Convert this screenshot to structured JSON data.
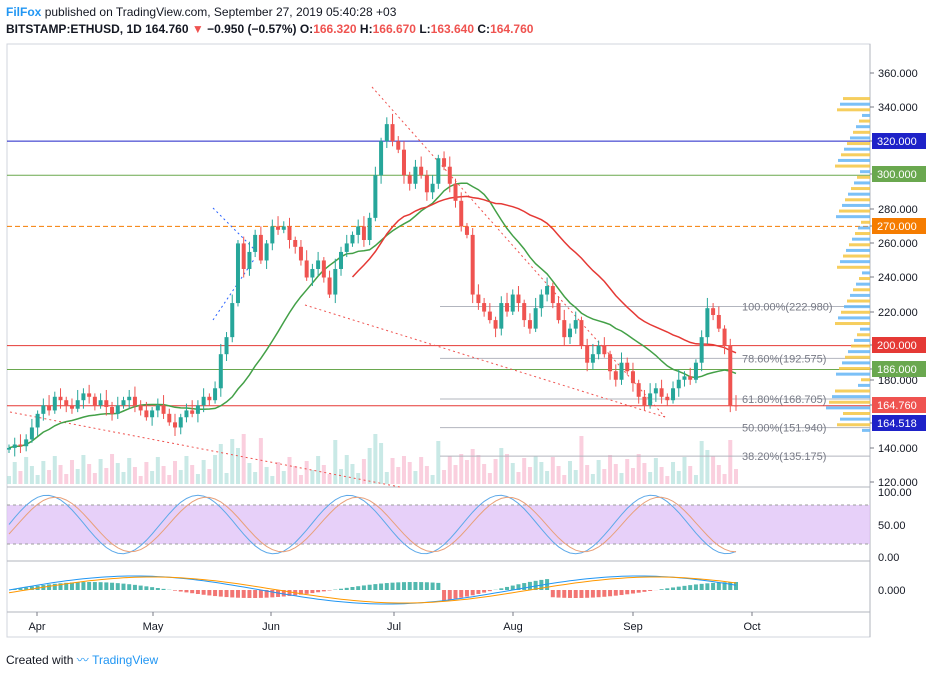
{
  "header": {
    "author": "FilFox",
    "published_text": "published on TradingView.com, September 27, 2019 05:40:28 +03",
    "symbol": "BITSTAMP:ETHUSD, 1D",
    "last": "164.760",
    "change": "−0.950 (−0.57%)",
    "o_label": "O:",
    "o": "166.320",
    "h_label": "H:",
    "h": "166.670",
    "l_label": "L:",
    "l": "163.640",
    "c_label": "C:",
    "c": "164.760"
  },
  "footer": {
    "created_with": "Created with",
    "brand": "TradingView"
  },
  "colors": {
    "up": "#26a69a",
    "down": "#ef5350",
    "ma": "#e53935",
    "ma_green": "#43a047",
    "blue_line": "#1e22c8",
    "green_line": "#6aa84f",
    "orange_line": "#f57c00",
    "stoch_fill": "#e1c4f7",
    "stoch_k": "#5da9e9",
    "stoch_d": "#e8a07a",
    "fib_line": "#b2b5be"
  },
  "chart_data": {
    "type": "candlestick",
    "price_axis": {
      "ticks": [
        "360.000",
        "340.000",
        "320.000",
        "300.000",
        "280.000",
        "270.000",
        "260.000",
        "240.000",
        "220.000",
        "200.000",
        "186.000",
        "180.000",
        "164.760",
        "164.518",
        "140.000",
        "120.000"
      ],
      "range": [
        120,
        370
      ]
    },
    "time_axis": {
      "labels": [
        "Apr",
        "May",
        "Jun",
        "Jul",
        "Aug",
        "Sep",
        "Oct"
      ]
    },
    "horizontal_levels": [
      {
        "value": 320,
        "label": "320.000",
        "color": "#1e22c8"
      },
      {
        "value": 300,
        "label": "300.000",
        "color": "#6aa84f"
      },
      {
        "value": 270,
        "label": "270.000",
        "color": "#f57c00",
        "style": "dashed"
      },
      {
        "value": 200,
        "label": "200.000",
        "color": "#e53935"
      },
      {
        "value": 186,
        "label": "186.000",
        "color": "#6aa84f"
      },
      {
        "value": 164.76,
        "label": "164.760",
        "color": "#e53935"
      },
      {
        "value": 164.518,
        "label": "164.518",
        "color": "#1e22c8"
      }
    ],
    "fib_levels": [
      {
        "value": 222.98,
        "label": "100.00%(222.980)"
      },
      {
        "value": 192.575,
        "label": "78.60%(192.575)"
      },
      {
        "value": 168.705,
        "label": "61.80%(168.705)"
      },
      {
        "value": 151.94,
        "label": "50.00%(151.940)"
      },
      {
        "value": 135.175,
        "label": "38.20%(135.175)"
      }
    ],
    "close_series": [
      140,
      142,
      141,
      145,
      152,
      160,
      165,
      162,
      170,
      168,
      165,
      163,
      168,
      172,
      170,
      165,
      168,
      164,
      160,
      165,
      168,
      170,
      165,
      162,
      158,
      162,
      165,
      160,
      155,
      152,
      158,
      162,
      160,
      165,
      170,
      168,
      175,
      195,
      205,
      225,
      260,
      245,
      255,
      265,
      250,
      260,
      270,
      268,
      270,
      262,
      258,
      250,
      240,
      245,
      250,
      240,
      230,
      245,
      255,
      260,
      265,
      270,
      262,
      275,
      300,
      320,
      330,
      320,
      315,
      300,
      295,
      305,
      300,
      290,
      295,
      310,
      305,
      295,
      285,
      270,
      265,
      230,
      225,
      220,
      215,
      210,
      225,
      220,
      230,
      225,
      215,
      210,
      222,
      230,
      235,
      225,
      215,
      205,
      210,
      215,
      200,
      190,
      195,
      200,
      195,
      185,
      180,
      190,
      185,
      178,
      170,
      165,
      172,
      175,
      170,
      168,
      175,
      180,
      182,
      180,
      190,
      205,
      222,
      218,
      210,
      200,
      165,
      164.76
    ],
    "ma50_start": 140,
    "stoch": {
      "ticks": [
        "100.00",
        "50.00",
        "0.00"
      ],
      "range": [
        0,
        100
      ],
      "band": [
        20,
        80
      ]
    },
    "macd": {
      "ticks": [
        "0.000"
      ]
    }
  }
}
